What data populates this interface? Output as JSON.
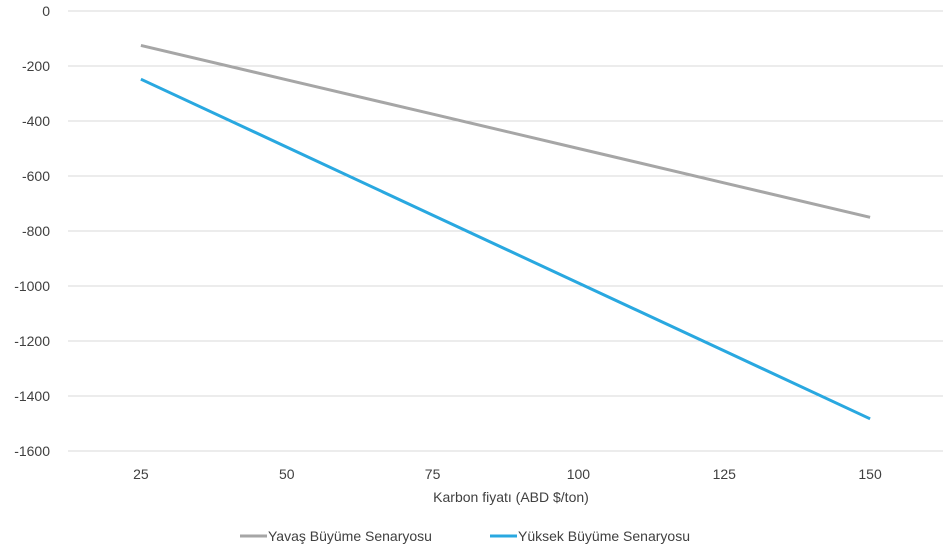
{
  "chart_data": {
    "type": "line",
    "categories": [
      "25",
      "50",
      "75",
      "100",
      "125",
      "150"
    ],
    "x": [
      25,
      50,
      75,
      100,
      125,
      150
    ],
    "series": [
      {
        "name": "Yavaş Büyüme Senaryosu",
        "color": "#a6a6a6",
        "values": [
          -125,
          -250,
          -375,
          -500,
          -625,
          -750
        ]
      },
      {
        "name": "Yüksek Büyüme Senaryosu",
        "color": "#29a8e0",
        "values": [
          -248,
          -495,
          -742,
          -989,
          -1236,
          -1483
        ]
      }
    ],
    "yticks": [
      "0",
      "-200",
      "-400",
      "-600",
      "-800",
      "-1000",
      "-1200",
      "-1400",
      "-1600"
    ],
    "ylim": [
      -1600,
      0
    ],
    "xlabel": "Karbon fiyatı (ABD $/ton)",
    "ylabel": "",
    "title": "",
    "grid": "horizontal",
    "legend_position": "bottom"
  }
}
